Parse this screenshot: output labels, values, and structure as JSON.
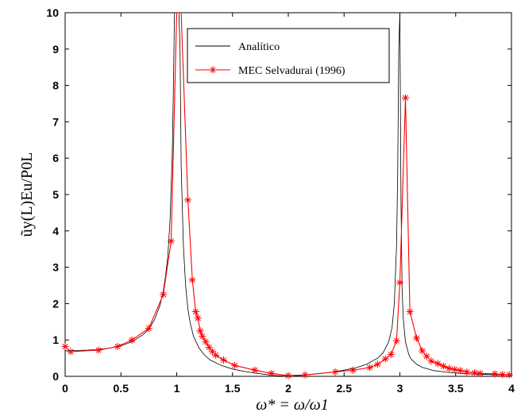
{
  "chart_data": {
    "type": "line",
    "xlabel": "ω* = ω/ω1",
    "ylabel": "ũy(L)Eu/P0L",
    "xlim": [
      0,
      4
    ],
    "ylim": [
      0,
      10
    ],
    "xticks": [
      "0",
      "0.5",
      "1",
      "1.5",
      "2",
      "2.5",
      "3",
      "3.5",
      "4"
    ],
    "yticks": [
      "0",
      "1",
      "2",
      "3",
      "4",
      "5",
      "6",
      "7",
      "8",
      "9",
      "10"
    ],
    "grid": false,
    "legend_position": "top-right",
    "series": [
      {
        "name": "Analítico",
        "color": "#000000",
        "marker": "none",
        "x": [
          0,
          0.1,
          0.2,
          0.3,
          0.4,
          0.5,
          0.6,
          0.7,
          0.75,
          0.8,
          0.85,
          0.88,
          0.9,
          0.92,
          0.94,
          0.96,
          0.97,
          0.98,
          0.99,
          1.0,
          1.01,
          1.02,
          1.03,
          1.04,
          1.06,
          1.08,
          1.1,
          1.12,
          1.15,
          1.2,
          1.25,
          1.3,
          1.4,
          1.5,
          1.6,
          1.7,
          1.8,
          1.9,
          1.95,
          2.0,
          2.05,
          2.1,
          2.2,
          2.3,
          2.4,
          2.5,
          2.6,
          2.7,
          2.8,
          2.85,
          2.9,
          2.93,
          2.95,
          2.97,
          2.98,
          2.99,
          3.0,
          3.01,
          3.02,
          3.03,
          3.05,
          3.08,
          3.1,
          3.15,
          3.2,
          3.3,
          3.4,
          3.5,
          3.6,
          3.7,
          3.8,
          3.9,
          4.0
        ],
        "y": [
          0.7,
          0.71,
          0.72,
          0.74,
          0.78,
          0.84,
          0.95,
          1.15,
          1.3,
          1.55,
          1.95,
          2.35,
          2.75,
          3.3,
          4.3,
          6.1,
          7.9,
          10,
          10,
          10,
          10,
          10,
          9.0,
          5.8,
          3.6,
          2.5,
          1.85,
          1.48,
          1.1,
          0.78,
          0.58,
          0.45,
          0.3,
          0.2,
          0.14,
          0.09,
          0.05,
          0.02,
          0.01,
          0.0,
          0.01,
          0.02,
          0.05,
          0.08,
          0.12,
          0.17,
          0.23,
          0.33,
          0.5,
          0.65,
          0.95,
          1.35,
          2.0,
          3.6,
          5.5,
          9.0,
          10,
          4.8,
          2.4,
          1.6,
          0.95,
          0.6,
          0.48,
          0.33,
          0.25,
          0.16,
          0.12,
          0.09,
          0.07,
          0.06,
          0.05,
          0.04,
          0.04
        ]
      },
      {
        "name": "MEC Selvadurai (1996)",
        "color": "#ff0000",
        "marker": "*",
        "x": [
          0,
          0.05,
          0.3,
          0.47,
          0.6,
          0.75,
          0.88,
          0.95,
          1.0,
          1.04,
          1.1,
          1.14,
          1.17,
          1.19,
          1.21,
          1.23,
          1.26,
          1.29,
          1.32,
          1.35,
          1.42,
          1.52,
          1.7,
          1.85,
          2.0,
          2.15,
          2.42,
          2.58,
          2.73,
          2.8,
          2.87,
          2.92,
          2.97,
          3.0,
          3.05,
          3.09,
          3.15,
          3.2,
          3.24,
          3.28,
          3.34,
          3.39,
          3.44,
          3.49,
          3.54,
          3.6,
          3.67,
          3.72,
          3.85,
          3.92,
          3.98
        ],
        "y": [
          0.82,
          0.68,
          0.72,
          0.82,
          1.0,
          1.32,
          2.25,
          3.72,
          10,
          10,
          4.85,
          2.65,
          1.78,
          1.6,
          1.25,
          1.1,
          0.95,
          0.8,
          0.68,
          0.58,
          0.45,
          0.3,
          0.17,
          0.08,
          0.02,
          0.04,
          0.12,
          0.17,
          0.24,
          0.33,
          0.48,
          0.6,
          0.98,
          2.58,
          7.66,
          1.78,
          1.05,
          0.7,
          0.55,
          0.42,
          0.35,
          0.28,
          0.22,
          0.19,
          0.16,
          0.12,
          0.1,
          0.08,
          0.07,
          0.05,
          0.04
        ]
      }
    ]
  }
}
